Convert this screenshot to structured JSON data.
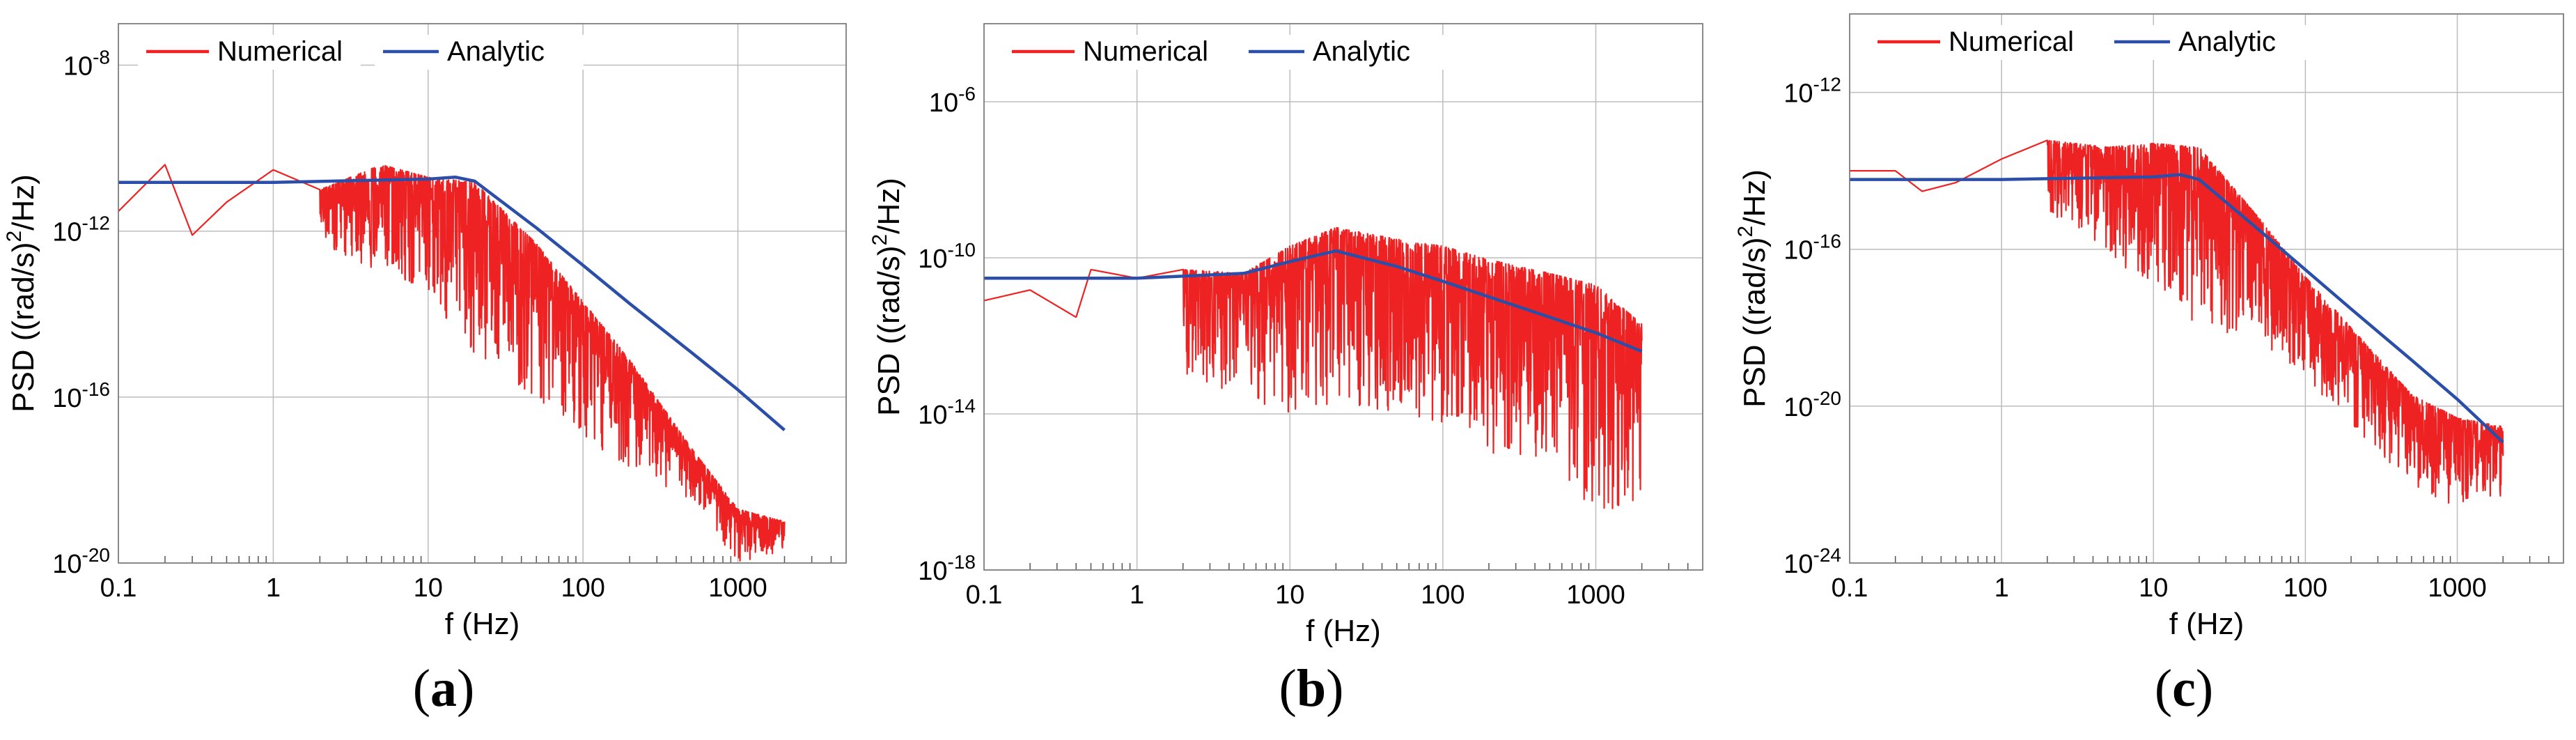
{
  "chart_data": [
    {
      "type": "line",
      "panel_label": "a",
      "xscale": "log",
      "yscale": "log",
      "xlim": [
        0.1,
        5000
      ],
      "ylim": [
        1e-20,
        1e-07
      ],
      "xticks": [
        0.1,
        1,
        10,
        100,
        1000
      ],
      "xtick_labels": [
        "0.1",
        "1",
        "10",
        "100",
        "1000"
      ],
      "yticks": [
        1e-20,
        1e-16,
        1e-12,
        1e-08
      ],
      "ytick_labels": [
        {
          "base": "10",
          "exp": "-20"
        },
        {
          "base": "10",
          "exp": "-16"
        },
        {
          "base": "10",
          "exp": "-12"
        },
        {
          "base": "10",
          "exp": "-8"
        }
      ],
      "xlabel": "f (Hz)",
      "ylabel": {
        "pre": "PSD ((rad/s)",
        "sup": "2",
        "post": "/Hz)"
      },
      "grid": true,
      "legend_position": "top",
      "series": [
        {
          "name": "Numerical",
          "color": "#ee2222",
          "x": [
            0.1,
            0.2,
            0.3,
            0.5,
            1,
            2,
            5,
            10,
            20,
            50,
            100,
            200,
            500,
            1000,
            2000
          ],
          "y": [
            3e-12,
            4e-11,
            8e-13,
            5e-12,
            3e-11,
            1e-11,
            4e-11,
            2e-11,
            1.5e-11,
            5e-13,
            2e-14,
            8e-16,
            6e-18,
            2e-19,
            1e-19
          ],
          "noise_floor_x": [
            0.1,
            2,
            10,
            20,
            50,
            100,
            200,
            500,
            1000,
            2000
          ],
          "noise_floor_y": [
            3e-12,
            5e-13,
            3e-14,
            1e-15,
            1e-16,
            1e-17,
            2e-18,
            3e-19,
            1e-20,
            2e-20
          ]
        },
        {
          "name": "Analytic",
          "color": "#2b4fa8",
          "x": [
            0.1,
            1,
            10,
            15,
            20,
            50,
            100,
            200,
            500,
            1000,
            2000
          ],
          "y": [
            1.5e-11,
            1.5e-11,
            1.8e-11,
            2e-11,
            1.6e-11,
            1.2e-12,
            1.5e-13,
            1.8e-14,
            1.2e-15,
            1.5e-16,
            1.6e-17
          ]
        }
      ]
    },
    {
      "type": "line",
      "panel_label": "b",
      "xscale": "log",
      "yscale": "log",
      "xlim": [
        0.1,
        5000
      ],
      "ylim": [
        1e-18,
        0.0001
      ],
      "xticks": [
        0.1,
        1,
        10,
        100,
        1000
      ],
      "xtick_labels": [
        "0.1",
        "1",
        "10",
        "100",
        "1000"
      ],
      "yticks": [
        1e-18,
        1e-14,
        1e-10,
        1e-06
      ],
      "ytick_labels": [
        {
          "base": "10",
          "exp": "-18"
        },
        {
          "base": "10",
          "exp": "-14"
        },
        {
          "base": "10",
          "exp": "-10"
        },
        {
          "base": "10",
          "exp": "-6"
        }
      ],
      "xlabel": "f (Hz)",
      "ylabel": {
        "pre": "PSD ((rad/s)",
        "sup": "2",
        "post": "/Hz)"
      },
      "grid": true,
      "legend_position": "top",
      "series": [
        {
          "name": "Numerical",
          "color": "#ee2222",
          "x": [
            0.1,
            0.2,
            0.4,
            0.5,
            1,
            2,
            5,
            10,
            20,
            50,
            100,
            200,
            500,
            1000,
            2000
          ],
          "y": [
            8e-12,
            1.5e-11,
            3e-12,
            5e-11,
            3e-11,
            5e-11,
            4e-11,
            2e-10,
            6e-10,
            3e-10,
            2e-10,
            9e-11,
            4e-11,
            2e-11,
            2e-12
          ],
          "noise_floor_x": [
            0.1,
            2,
            10,
            20,
            50,
            100,
            200,
            500,
            1000,
            2000
          ],
          "noise_floor_y": [
            8e-12,
            1e-13,
            1e-14,
            2e-14,
            1e-14,
            5e-15,
            8e-16,
            5e-16,
            3e-17,
            5e-17
          ]
        },
        {
          "name": "Analytic",
          "color": "#2b4fa8",
          "x": [
            0.1,
            1,
            5,
            10,
            20,
            50,
            100,
            200,
            500,
            1000,
            2000
          ],
          "y": [
            3e-11,
            3e-11,
            4e-11,
            8e-11,
            1.5e-10,
            6e-11,
            2.5e-11,
            1e-11,
            3e-12,
            1.2e-12,
            4e-13
          ]
        }
      ]
    },
    {
      "type": "line",
      "panel_label": "c",
      "xscale": "log",
      "yscale": "log",
      "xlim": [
        0.1,
        5000
      ],
      "ylim": [
        1e-24,
        1e-10
      ],
      "xticks": [
        0.1,
        1,
        10,
        100,
        1000
      ],
      "xtick_labels": [
        "0.1",
        "1",
        "10",
        "100",
        "1000"
      ],
      "yticks": [
        1e-24,
        1e-20,
        1e-16,
        1e-12
      ],
      "ytick_labels": [
        {
          "base": "10",
          "exp": "-24"
        },
        {
          "base": "10",
          "exp": "-20"
        },
        {
          "base": "10",
          "exp": "-16"
        },
        {
          "base": "10",
          "exp": "-12"
        }
      ],
      "xlabel": "f (Hz)",
      "ylabel": {
        "pre": "PSD ((rad/s)",
        "sup": "2",
        "post": "/Hz)"
      },
      "grid": true,
      "legend_position": "top",
      "series": [
        {
          "name": "Numerical",
          "color": "#ee2222",
          "x": [
            0.1,
            0.2,
            0.3,
            0.5,
            1,
            2,
            5,
            10,
            20,
            50,
            100,
            200,
            500,
            1000,
            2000
          ],
          "y": [
            1e-14,
            1e-14,
            3e-15,
            5e-15,
            2e-14,
            6e-14,
            4e-14,
            5e-14,
            4e-14,
            6e-16,
            2e-17,
            1e-18,
            2e-20,
            5e-21,
            3e-21
          ],
          "noise_floor_x": [
            0.1,
            2,
            10,
            20,
            50,
            100,
            200,
            500,
            1000,
            2000
          ],
          "noise_floor_y": [
            1e-14,
            1e-15,
            1e-17,
            1e-18,
            5e-19,
            5e-20,
            3e-21,
            1e-22,
            2e-23,
            5e-23
          ]
        },
        {
          "name": "Analytic",
          "color": "#2b4fa8",
          "x": [
            0.1,
            1,
            10,
            15,
            20,
            50,
            100,
            200,
            500,
            1000,
            2000
          ],
          "y": [
            6e-15,
            6e-15,
            7e-15,
            8e-15,
            6e-15,
            3e-16,
            3e-17,
            3e-18,
            1.5e-19,
            1.5e-20,
            1.2e-21
          ]
        }
      ]
    }
  ]
}
